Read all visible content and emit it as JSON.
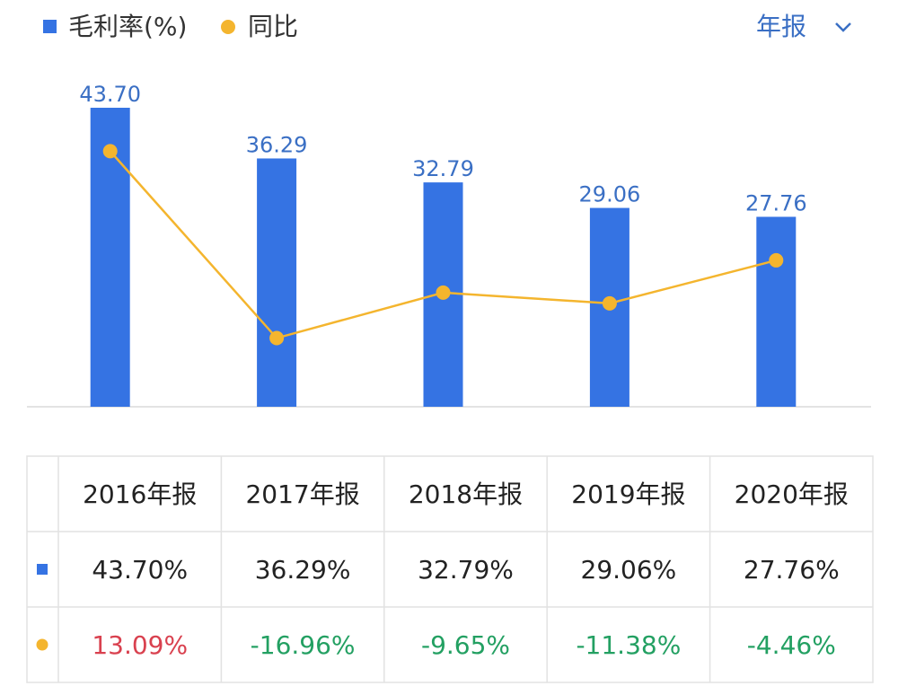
{
  "period_selector": "年报",
  "chart_data": {
    "type": "bar",
    "categories": [
      "2016年报",
      "2017年报",
      "2018年报",
      "2019年报",
      "2020年报"
    ],
    "series": [
      {
        "name": "毛利率(%)",
        "color": "#3573e3",
        "values": [
          43.7,
          36.29,
          32.79,
          29.06,
          27.76
        ],
        "value_labels": [
          "43.70",
          "36.29",
          "32.79",
          "29.06",
          "27.76"
        ],
        "table_labels": [
          "43.70%",
          "36.29%",
          "32.79%",
          "29.06%",
          "27.76%"
        ]
      },
      {
        "name": "同比",
        "type": "line",
        "axis": "y2",
        "color": "#f4b52e",
        "values": [
          13.09,
          -16.96,
          -9.65,
          -11.38,
          -4.46
        ],
        "value_labels": [
          "13.09%",
          "-16.96%",
          "-9.65%",
          "-11.38%",
          "-4.46%"
        ],
        "positive_color": "#d9414f",
        "negative_color": "#23a062"
      }
    ],
    "ylim": [
      0,
      50
    ],
    "y2lim": [
      -28,
      27
    ]
  }
}
